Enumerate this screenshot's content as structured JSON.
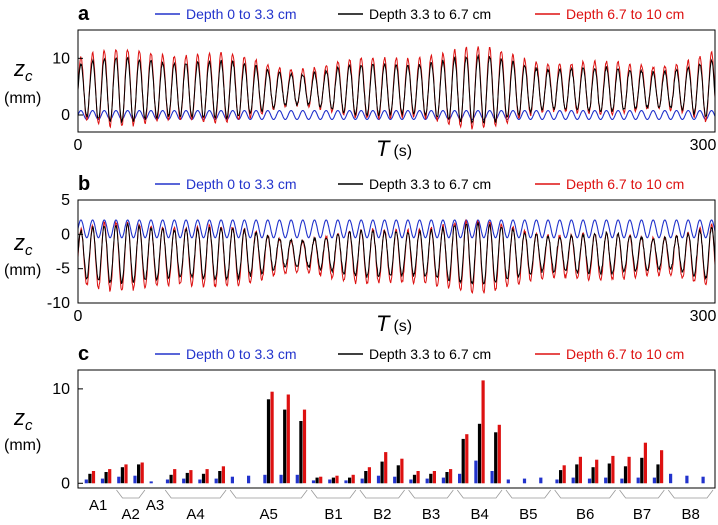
{
  "colors": {
    "blue": "#2233cc",
    "black": "#000000",
    "red": "#dd1111",
    "frame": "#000000"
  },
  "chart_data": [
    {
      "panel": "a",
      "type": "line",
      "xlabel_symbol": "T",
      "xlabel_unit": "(s)",
      "ylabel_symbol": "z",
      "ylabel_sub": "c",
      "ylabel_unit": "(mm)",
      "xlim": [
        0,
        300
      ],
      "ylim": [
        -3,
        15
      ],
      "xticks": [
        "0",
        "300"
      ],
      "yticks": [
        0,
        10
      ],
      "ytick_labels": [
        "0",
        "10"
      ],
      "series": [
        {
          "name": "Depth 0 to 3.3 cm",
          "color": "blue",
          "offset": 0.0,
          "amplitude": 0.8,
          "period": 5.5
        },
        {
          "name": "Depth 3.3 to 6.7 cm",
          "color": "black",
          "offset": 4.5,
          "amplitude": 4.3,
          "period": 5.5
        },
        {
          "name": "Depth 6.7 to 10 cm",
          "color": "red",
          "offset": 4.8,
          "amplitude": 5.2,
          "period": 5.5
        }
      ]
    },
    {
      "panel": "b",
      "type": "line",
      "xlabel_symbol": "T",
      "xlabel_unit": "(s)",
      "ylabel_symbol": "z",
      "ylabel_sub": "c",
      "ylabel_unit": "(mm)",
      "xlim": [
        0,
        300
      ],
      "ylim": [
        -10,
        5
      ],
      "xticks": [
        "0",
        "300"
      ],
      "yticks": [
        5,
        0,
        -5,
        -10
      ],
      "ytick_labels": [
        "5",
        "0",
        "-5",
        "-10"
      ],
      "series": [
        {
          "name": "Depth 0 to 3.3 cm",
          "color": "blue",
          "offset": 0.8,
          "amplitude": 1.3,
          "period": 5.5
        },
        {
          "name": "Depth 3.3 to 6.7 cm",
          "color": "black",
          "offset": -2.8,
          "amplitude": 3.2,
          "period": 5.5
        },
        {
          "name": "Depth 6.7 to 10 cm",
          "color": "red",
          "offset": -3.2,
          "amplitude": 3.8,
          "period": 5.5
        }
      ]
    },
    {
      "panel": "c",
      "type": "bar",
      "ylabel_symbol": "z",
      "ylabel_sub": "c",
      "ylabel_unit": "(mm)",
      "ylim": [
        -0.5,
        12
      ],
      "yticks": [
        0,
        10
      ],
      "ytick_labels": [
        "0",
        "10"
      ],
      "legend": [
        "Depth 0 to 3.3 cm",
        "Depth 3.3 to 6.7 cm",
        "Depth 6.7 to 10 cm"
      ],
      "groups": [
        {
          "label": "A1",
          "triplets": [
            [
              0.4,
              1.0,
              1.3
            ],
            [
              0.5,
              1.2,
              1.5
            ]
          ]
        },
        {
          "label": "A2",
          "triplets": [
            [
              0.7,
              1.7,
              2.0
            ],
            [
              0.8,
              2.0,
              2.2
            ]
          ]
        },
        {
          "label": "A3",
          "triplets": [
            [
              0.2,
              0.0,
              0.0
            ]
          ]
        },
        {
          "label": "A4",
          "triplets": [
            [
              0.4,
              0.9,
              1.5
            ],
            [
              0.5,
              1.1,
              1.4
            ],
            [
              0.4,
              1.0,
              1.5
            ],
            [
              0.5,
              1.3,
              1.8
            ]
          ]
        },
        {
          "label": "A5",
          "triplets": [
            [
              0.7,
              0.0,
              0.0
            ],
            [
              0.8,
              0.0,
              0.0
            ],
            [
              0.9,
              8.9,
              9.7
            ],
            [
              0.9,
              7.8,
              9.4
            ],
            [
              0.9,
              6.6,
              7.8
            ]
          ]
        },
        {
          "label": "B1",
          "triplets": [
            [
              0.3,
              0.6,
              0.7
            ],
            [
              0.4,
              0.6,
              0.8
            ],
            [
              0.3,
              0.6,
              0.9
            ]
          ]
        },
        {
          "label": "B2",
          "triplets": [
            [
              0.5,
              1.3,
              1.7
            ],
            [
              0.8,
              2.3,
              3.3
            ],
            [
              0.7,
              1.9,
              2.6
            ]
          ]
        },
        {
          "label": "B3",
          "triplets": [
            [
              0.4,
              0.9,
              1.3
            ],
            [
              0.5,
              1.0,
              1.3
            ],
            [
              0.6,
              1.2,
              1.5
            ]
          ]
        },
        {
          "label": "B4",
          "triplets": [
            [
              1.0,
              4.7,
              5.2
            ],
            [
              2.4,
              6.3,
              10.9
            ],
            [
              1.3,
              5.4,
              6.2
            ]
          ]
        },
        {
          "label": "B5",
          "triplets": [
            [
              0.4,
              0.0,
              0.0
            ],
            [
              0.5,
              0.0,
              0.0
            ],
            [
              0.6,
              0.0,
              0.0
            ]
          ]
        },
        {
          "label": "B6",
          "triplets": [
            [
              0.4,
              1.4,
              1.9
            ],
            [
              0.6,
              2.0,
              2.8
            ],
            [
              0.5,
              1.7,
              2.5
            ],
            [
              0.6,
              2.1,
              2.9
            ]
          ]
        },
        {
          "label": "B7",
          "triplets": [
            [
              0.5,
              1.8,
              2.8
            ],
            [
              0.6,
              2.7,
              4.3
            ],
            [
              0.6,
              2.0,
              3.5
            ]
          ]
        },
        {
          "label": "B8",
          "triplets": [
            [
              1.0,
              0.0,
              0.0
            ],
            [
              0.8,
              0.0,
              0.0
            ],
            [
              0.7,
              0.0,
              0.0
            ]
          ]
        }
      ]
    }
  ]
}
